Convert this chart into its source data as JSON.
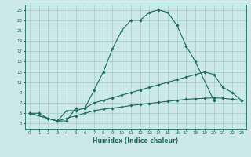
{
  "xlabel": "Humidex (Indice chaleur)",
  "bg_color": "#cce8e8",
  "line_color": "#1a6b5a",
  "grid_color": "#8bbcbc",
  "xlim": [
    -0.5,
    23.5
  ],
  "ylim": [
    2,
    26
  ],
  "xticks": [
    0,
    1,
    2,
    3,
    4,
    5,
    6,
    7,
    8,
    9,
    10,
    11,
    12,
    13,
    14,
    15,
    16,
    17,
    18,
    19,
    20,
    21,
    22,
    23
  ],
  "yticks": [
    3,
    5,
    7,
    9,
    11,
    13,
    15,
    17,
    19,
    21,
    23,
    25
  ],
  "curve1_x": [
    0,
    1,
    2,
    3,
    4,
    5,
    6,
    7,
    8,
    9,
    10,
    11,
    12,
    13,
    14,
    15,
    16,
    17,
    18,
    20
  ],
  "curve1_y": [
    5,
    5,
    4,
    3.5,
    3.5,
    6,
    6,
    9.5,
    13,
    17.5,
    21,
    23,
    23,
    24.5,
    25,
    24.5,
    22,
    18,
    15,
    7.5
  ],
  "curve2_x": [
    0,
    2,
    3,
    4,
    5,
    6,
    7,
    8,
    9,
    10,
    11,
    12,
    13,
    14,
    15,
    16,
    17,
    18,
    19,
    20,
    21,
    22,
    23
  ],
  "curve2_y": [
    5,
    4,
    3.5,
    5.5,
    5.5,
    6,
    7,
    7.5,
    8,
    8.5,
    9,
    9.5,
    10,
    10.5,
    11,
    11.5,
    12,
    12.5,
    13,
    12.5,
    10,
    9,
    7.5
  ],
  "curve3_x": [
    0,
    2,
    3,
    4,
    5,
    6,
    7,
    8,
    9,
    10,
    11,
    12,
    13,
    14,
    15,
    16,
    17,
    18,
    19,
    20,
    21,
    22,
    23
  ],
  "curve3_y": [
    5,
    4,
    3.5,
    4,
    4.5,
    5,
    5.5,
    5.8,
    6.0,
    6.2,
    6.5,
    6.7,
    6.9,
    7.1,
    7.3,
    7.5,
    7.7,
    7.8,
    7.9,
    8.0,
    7.9,
    7.7,
    7.5
  ]
}
